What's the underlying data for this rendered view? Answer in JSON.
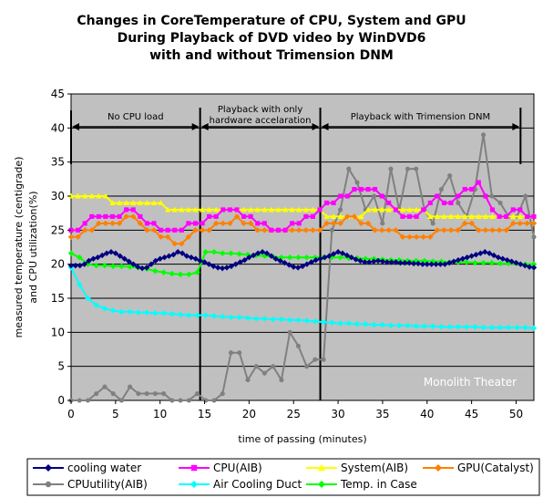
{
  "chart_data": {
    "type": "line",
    "title_lines": [
      "Changes in CoreTemperature of CPU, System and GPU",
      "During Playback of DVD video by WinDVD6",
      "with and without Trimension DNM"
    ],
    "xlabel": "time of passing (minutes)",
    "ylabel_lines": [
      "measured temperature (centigrade)",
      "and CPU utilization(%)"
    ],
    "xlim": [
      0,
      52
    ],
    "ylim": [
      0,
      45
    ],
    "x_ticks": [
      0,
      5,
      10,
      15,
      20,
      25,
      30,
      35,
      40,
      45,
      50
    ],
    "y_ticks": [
      0,
      5,
      10,
      15,
      20,
      25,
      30,
      35,
      40,
      45
    ],
    "grid": "horizontal",
    "legend_position": "bottom",
    "watermark": "Monolith Theater",
    "phases": [
      {
        "label": "No CPU load",
        "start": 0,
        "end": 14.5
      },
      {
        "label_lines": [
          "Playback with only",
          "hardware accelaration"
        ],
        "start": 14.5,
        "end": 28
      },
      {
        "label": "Playback with Trimension DNM",
        "start": 28,
        "end": 50.5
      }
    ],
    "series": [
      {
        "name": "cooling water",
        "color": "#000080",
        "marker": "diamond",
        "values": [
          19.8,
          19.8,
          19.8,
          20,
          20.5,
          20.8,
          21,
          21.3,
          21.6,
          21.8,
          21.6,
          21.2,
          20.8,
          20.4,
          20,
          19.6,
          19.4,
          19.5,
          20,
          20.5,
          20.8,
          21,
          21.2,
          21.4,
          21.8,
          21.6,
          21.2,
          21,
          20.8,
          20.5,
          20.3,
          20,
          19.7,
          19.5,
          19.4,
          19.5,
          19.7,
          20,
          20.3,
          20.6,
          21,
          21.3,
          21.6,
          21.8,
          21.6,
          21.2,
          20.8,
          20.5,
          20.2,
          19.9,
          19.6,
          19.5,
          19.7,
          20,
          20.3,
          20.6,
          20.8,
          21,
          21.2,
          21.5,
          21.8,
          21.6,
          21.3,
          21,
          20.7,
          20.5,
          20.3,
          20.3,
          20.4,
          20.5,
          20.4,
          20.3,
          20.3,
          20.3,
          20.2,
          20.2,
          20.2,
          20.1,
          20.1,
          20.0,
          20.0,
          20.0,
          20.0,
          20.0,
          20.0,
          20.2,
          20.4,
          20.6,
          20.8,
          21,
          21.2,
          21.4,
          21.6,
          21.8,
          21.6,
          21.3,
          21.0,
          20.8,
          20.6,
          20.4,
          20.2,
          20.0,
          19.8,
          19.6,
          19.5
        ]
      },
      {
        "name": "CPU(AIB)",
        "color": "#ff00ff",
        "marker": "square",
        "values": [
          25,
          25,
          26,
          27,
          27,
          27,
          27,
          27,
          28,
          28,
          27,
          26,
          26,
          25,
          25,
          25,
          25,
          26,
          26,
          26,
          27,
          27,
          28,
          28,
          28,
          27,
          27,
          26,
          26,
          25,
          25,
          25,
          26,
          26,
          27,
          27,
          28,
          29,
          29,
          30,
          30,
          31,
          31,
          31,
          31,
          30,
          29,
          28,
          27,
          27,
          27,
          28,
          29,
          30,
          29,
          29,
          30,
          31,
          31,
          32,
          30,
          28,
          27,
          27,
          28,
          28,
          27,
          27
        ]
      },
      {
        "name": "System(AIB)",
        "color": "#ffff00",
        "marker": "triangle",
        "values": [
          30,
          30,
          30,
          30,
          30,
          30,
          29,
          29,
          29,
          29,
          29,
          29,
          29,
          29,
          28,
          28,
          28,
          28,
          28,
          28,
          28,
          28,
          28,
          28,
          28,
          28,
          28,
          28,
          28,
          28,
          28,
          28,
          28,
          28,
          28,
          28,
          28,
          27,
          27,
          27,
          27,
          27,
          27,
          28,
          28,
          28,
          28,
          28,
          28,
          28,
          28,
          28,
          27,
          27,
          27,
          27,
          27,
          27,
          27,
          27,
          27,
          27,
          27,
          27,
          27,
          27,
          27,
          27
        ]
      },
      {
        "name": "GPU(Catalyst)",
        "color": "#ff8000",
        "marker": "diamond",
        "values": [
          24,
          24,
          25,
          25,
          26,
          26,
          26,
          26,
          27,
          27,
          26,
          25,
          25,
          24,
          24,
          23,
          23,
          24,
          25,
          25,
          25,
          26,
          26,
          26,
          27,
          26,
          26,
          25,
          25,
          25,
          25,
          25,
          25,
          25,
          25,
          25,
          25,
          26,
          26,
          26,
          27,
          27,
          26,
          26,
          25,
          25,
          25,
          25,
          24,
          24,
          24,
          24,
          24,
          25,
          25,
          25,
          25,
          26,
          26,
          25,
          25,
          25,
          25,
          25,
          26,
          26,
          26,
          26
        ]
      },
      {
        "name": "CPUutility(AIB)",
        "color": "#808080",
        "marker": "circle",
        "values": [
          0,
          0,
          0,
          1,
          2,
          1,
          0,
          2,
          1,
          1,
          1,
          1,
          0,
          0,
          0,
          1,
          0,
          0,
          1,
          7,
          7,
          3,
          5,
          4,
          5,
          3,
          10,
          8,
          5,
          6,
          6,
          25,
          28,
          34,
          32,
          28,
          30,
          26,
          34,
          28,
          34,
          34,
          28,
          26,
          31,
          33,
          29,
          27,
          31,
          39,
          30,
          29,
          27,
          27,
          30,
          24
        ]
      },
      {
        "name": "Air Cooling Duct",
        "color": "#00ffff",
        "marker": "diamond",
        "values": [
          19.5,
          17,
          15,
          14,
          13.5,
          13.2,
          13,
          13,
          12.9,
          12.9,
          12.8,
          12.8,
          12.7,
          12.6,
          12.5,
          12.5,
          12.5,
          12.4,
          12.3,
          12.2,
          12.2,
          12.1,
          12,
          12,
          11.9,
          11.9,
          11.8,
          11.8,
          11.7,
          11.6,
          11.5,
          11.4,
          11.3,
          11.3,
          11.2,
          11.2,
          11.1,
          11.1,
          11,
          11,
          11,
          10.9,
          10.9,
          10.9,
          10.8,
          10.8,
          10.8,
          10.8,
          10.8,
          10.7,
          10.7,
          10.7,
          10.7,
          10.7,
          10.7,
          10.6
        ]
      },
      {
        "name": "Temp. in Case",
        "color": "#00ff00",
        "marker": "diamond",
        "values": [
          21.6,
          21,
          20,
          19.8,
          19.8,
          19.7,
          19.7,
          19.6,
          19.5,
          19.3,
          19,
          18.8,
          18.6,
          18.5,
          18.5,
          18.8,
          21.8,
          21.8,
          21.6,
          21.6,
          21.5,
          21.4,
          21.3,
          21.2,
          21.1,
          21,
          21,
          21,
          21,
          21,
          21,
          21,
          21,
          20.9,
          20.9,
          20.8,
          20.8,
          20.7,
          20.6,
          20.6,
          20.5,
          20.5,
          20.5,
          20.4,
          20.4,
          20.3,
          20.3,
          20.3,
          20.2,
          20.2,
          20.2,
          20.1,
          20.1,
          20.1,
          20.0,
          20.0
        ]
      }
    ]
  }
}
